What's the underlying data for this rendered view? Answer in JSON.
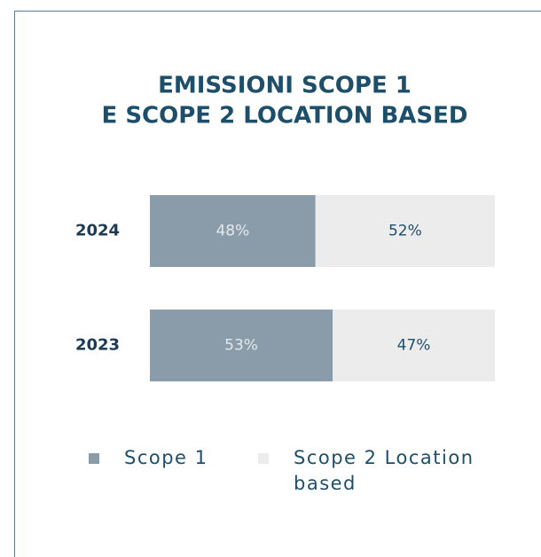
{
  "chart_data": {
    "type": "stacked_bar_horizontal",
    "title": [
      "EMISSIONI SCOPE 1",
      "E SCOPE 2 LOCATION BASED"
    ],
    "categories": [
      "2024",
      "2023"
    ],
    "series": [
      {
        "name": "Scope 1",
        "color": "#8a9ca9",
        "values": [
          48,
          53
        ],
        "value_labels": [
          "48%",
          "53%"
        ]
      },
      {
        "name": "Scope 2 Location based",
        "color": "#ececec",
        "values": [
          52,
          47
        ],
        "value_labels": [
          "52%",
          "47%"
        ]
      }
    ]
  }
}
